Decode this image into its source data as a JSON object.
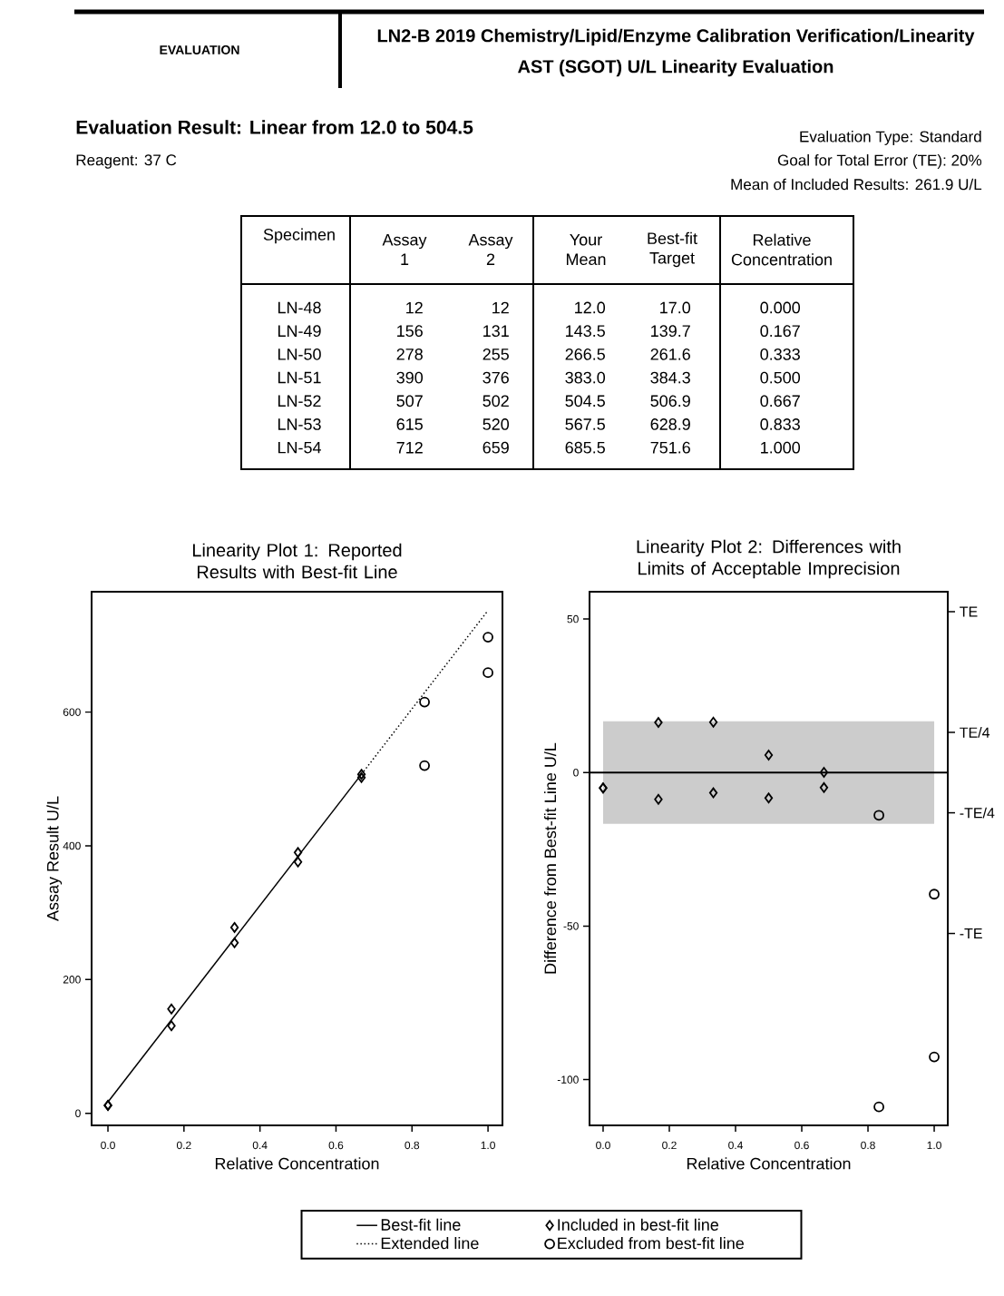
{
  "chart_data": [
    {
      "type": "other",
      "title": "LN2-B 2019 Chemistry/Lipid/Enzyme Calibration Verification/Linearity",
      "subtitle": "AST (SGOT) U/L Linearity Evaluation",
      "annotations": [
        "EVALUATION",
        "Evaluation Result: Linear from 12.0 to 504.5",
        "Reagent: 37 C",
        "Evaluation Type: Standard",
        "Goal for Total Error (TE): 20%",
        "Mean of Included Results: 261.9 U/L"
      ]
    },
    {
      "type": "other",
      "xlabel": "Specimen",
      "categories": [
        "LN-48",
        "LN-49",
        "LN-50",
        "LN-51",
        "LN-52",
        "LN-53",
        "LN-54"
      ],
      "series": [
        {
          "name": "Assay 1",
          "values": [
            12,
            156,
            278,
            390,
            507,
            615,
            712
          ],
          "value_labels": [
            "12",
            "156",
            "278",
            "390",
            "507",
            "615",
            "712"
          ]
        },
        {
          "name": "Assay 2",
          "values": [
            12,
            131,
            255,
            376,
            502,
            520,
            659
          ],
          "value_labels": [
            "12",
            "131",
            "255",
            "376",
            "502",
            "520",
            "659"
          ]
        },
        {
          "name": "Your Mean",
          "values": [
            12.0,
            143.5,
            266.5,
            383.0,
            504.5,
            567.5,
            685.5
          ],
          "value_labels": [
            "12.0",
            "143.5",
            "266.5",
            "383.0",
            "504.5",
            "567.5",
            "685.5"
          ]
        },
        {
          "name": "Best-fit Target",
          "values": [
            17.0,
            139.7,
            261.6,
            384.3,
            506.9,
            628.9,
            751.6
          ],
          "value_labels": [
            "17.0",
            "139.7",
            "261.6",
            "384.3",
            "506.9",
            "628.9",
            "751.6"
          ]
        },
        {
          "name": "Relative Concentration",
          "values": [
            0.0,
            0.167,
            0.333,
            0.5,
            0.667,
            0.833,
            1.0
          ],
          "value_labels": [
            "0.000",
            "0.167",
            "0.333",
            "0.500",
            "0.667",
            "0.833",
            "1.000"
          ]
        }
      ]
    },
    {
      "type": "scatter",
      "title": "Linearity Plot 1: Reported Results with Best-fit Line",
      "xlabel": "Relative Concentration",
      "ylabel": "Assay Result U/L",
      "xlim": [
        -0.043,
        1.038
      ],
      "ylim": [
        -18,
        780
      ],
      "xticks": [
        {
          "value": 0,
          "label": "0.0"
        },
        {
          "value": 0.2,
          "label": "0.2"
        },
        {
          "value": 0.4,
          "label": "0.4"
        },
        {
          "value": 0.6,
          "label": "0.6"
        },
        {
          "value": 0.8,
          "label": "0.8"
        },
        {
          "value": 1,
          "label": "1.0"
        }
      ],
      "yticks": [
        0,
        200,
        400,
        600
      ],
      "legend": "bottom",
      "series": [
        {
          "name": "Best-fit line",
          "type": "line",
          "color": "#000000",
          "line_style": "solid",
          "x": [
            0,
            0.667
          ],
          "values": [
            17,
            507
          ]
        },
        {
          "name": "Extended line",
          "type": "line",
          "color": "#000000",
          "line_style": "dotted",
          "x": [
            0.667,
            1.0
          ],
          "values": [
            507,
            752
          ]
        },
        {
          "name": "Included in best-fit line",
          "type": "scatter",
          "color": "#000000",
          "marker": "diamond",
          "x": [
            0,
            0,
            0.167,
            0.167,
            0.333,
            0.333,
            0.5,
            0.5,
            0.667,
            0.667
          ],
          "values": [
            12,
            12,
            156,
            131,
            278,
            255,
            390,
            376,
            507,
            502
          ]
        },
        {
          "name": "Excluded from best-fit line",
          "type": "scatter",
          "color": "#000000",
          "marker": "circle",
          "x": [
            0.833,
            0.833,
            1,
            1
          ],
          "values": [
            615,
            520,
            712,
            659
          ]
        }
      ]
    },
    {
      "type": "scatter",
      "title": "Linearity Plot 2: Differences with Limits of Acceptable Imprecision",
      "xlabel": "Relative Concentration",
      "ylabel": "Difference from Best-fit Line U/L",
      "xlim": [
        -0.041,
        1.041
      ],
      "ylim": [
        -114.9,
        58.9
      ],
      "xticks": [
        {
          "value": 0,
          "label": "0.0"
        },
        {
          "value": 0.2,
          "label": "0.2"
        },
        {
          "value": 0.4,
          "label": "0.4"
        },
        {
          "value": 0.6,
          "label": "0.6"
        },
        {
          "value": 0.8,
          "label": "0.8"
        },
        {
          "value": 1,
          "label": "1.0"
        }
      ],
      "yticks": [
        -100,
        -50,
        0,
        50
      ],
      "ref_lines": [
        {
          "axis": "y",
          "value": 0,
          "color": "#000000",
          "line_style": "solid"
        },
        {
          "axis": "y",
          "value": 52.4,
          "label": "TE"
        },
        {
          "axis": "y",
          "value": 13.1,
          "label": "TE/4"
        },
        {
          "axis": "y",
          "value": -13.1,
          "label": "-TE/4"
        },
        {
          "axis": "y",
          "value": -52.4,
          "label": "-TE"
        }
      ],
      "bands": [
        {
          "axis": "y",
          "from": -16.7,
          "to": 16.7,
          "color": "#cccccc"
        }
      ],
      "series": [
        {
          "type": "scatter",
          "color": "#000000",
          "marker": "diamond",
          "x": [
            0,
            0,
            0.167,
            0.167,
            0.333,
            0.333,
            0.5,
            0.5,
            0.667,
            0.667
          ],
          "values": [
            -5.0,
            -5.0,
            16.3,
            -8.7,
            16.4,
            -6.6,
            5.7,
            -8.3,
            0.1,
            -4.9
          ]
        },
        {
          "type": "scatter",
          "color": "#000000",
          "marker": "circle",
          "x": [
            0.833,
            0.833,
            1,
            1
          ],
          "values": [
            -13.9,
            -108.9,
            -39.6,
            -92.6
          ]
        }
      ]
    }
  ]
}
